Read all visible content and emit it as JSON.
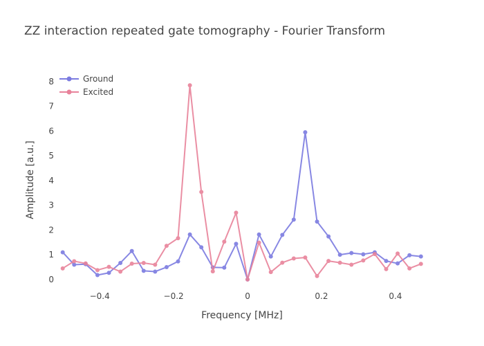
{
  "chart_data": {
    "type": "line",
    "title": "ZZ interaction repeated gate tomography - Fourier Transform",
    "xlabel": "Frequency [MHz]",
    "ylabel": "Amplitude [a.u.]",
    "xlim": [
      -0.52,
      0.49
    ],
    "ylim": [
      -0.45,
      8.5
    ],
    "x_ticks": [
      -0.4,
      -0.2,
      0,
      0.2,
      0.4
    ],
    "x_tick_labels": [
      "−0.4",
      "−0.2",
      "0",
      "0.2",
      "0.4"
    ],
    "y_ticks": [
      0,
      1,
      2,
      3,
      4,
      5,
      6,
      7,
      8
    ],
    "y_tick_labels": [
      "0",
      "1",
      "2",
      "3",
      "4",
      "5",
      "6",
      "7",
      "8"
    ],
    "grid": false,
    "legend_position": "top-left",
    "x": [
      -0.5,
      -0.469,
      -0.438,
      -0.406,
      -0.375,
      -0.344,
      -0.313,
      -0.281,
      -0.25,
      -0.219,
      -0.188,
      -0.156,
      -0.125,
      -0.094,
      -0.063,
      -0.031,
      0,
      0.031,
      0.063,
      0.094,
      0.125,
      0.156,
      0.188,
      0.219,
      0.25,
      0.281,
      0.313,
      0.344,
      0.375,
      0.406,
      0.438,
      0.469
    ],
    "series": [
      {
        "name": "Ground",
        "color": "#7b7be0",
        "values": [
          1.1,
          0.6,
          0.62,
          0.18,
          0.27,
          0.67,
          1.15,
          0.35,
          0.32,
          0.5,
          0.73,
          1.82,
          1.3,
          0.49,
          0.48,
          1.44,
          0.0,
          1.82,
          0.93,
          1.8,
          2.42,
          5.95,
          2.34,
          1.74,
          1.0,
          1.07,
          1.02,
          1.1,
          0.75,
          0.65,
          0.98,
          0.93
        ]
      },
      {
        "name": "Excited",
        "color": "#e8829a",
        "values": [
          0.45,
          0.74,
          0.65,
          0.38,
          0.51,
          0.32,
          0.64,
          0.67,
          0.6,
          1.36,
          1.67,
          7.85,
          3.54,
          0.33,
          1.53,
          2.7,
          0.0,
          1.49,
          0.3,
          0.68,
          0.85,
          0.89,
          0.14,
          0.75,
          0.68,
          0.6,
          0.77,
          1.03,
          0.42,
          1.05,
          0.45,
          0.63
        ]
      }
    ]
  }
}
